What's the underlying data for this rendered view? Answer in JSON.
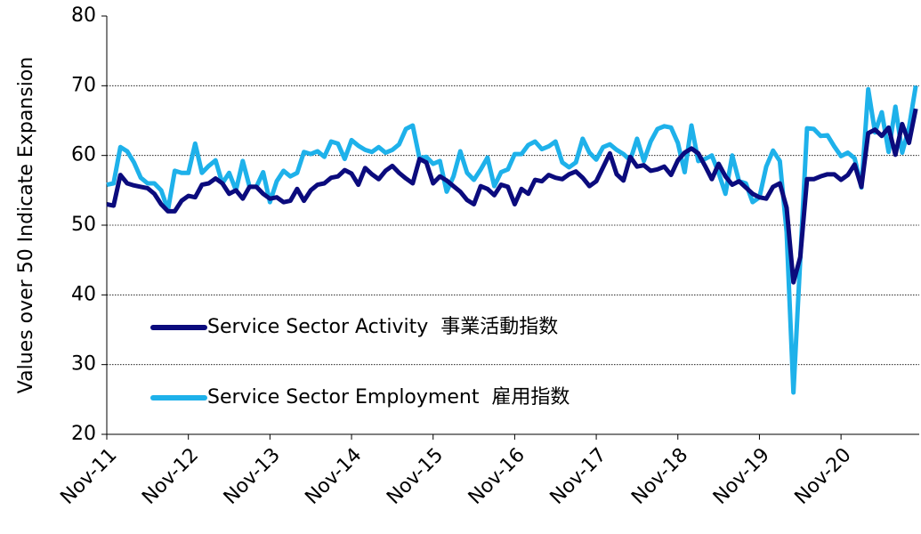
{
  "chart_data": {
    "type": "line",
    "ylabel": "Values over 50 Indicate Expansion",
    "categories": [
      "Nov-11",
      null,
      null,
      null,
      null,
      null,
      null,
      null,
      null,
      null,
      null,
      null,
      "Nov-12",
      null,
      null,
      null,
      null,
      null,
      null,
      null,
      null,
      null,
      null,
      null,
      "Nov-13",
      null,
      null,
      null,
      null,
      null,
      null,
      null,
      null,
      null,
      null,
      null,
      "Nov-14",
      null,
      null,
      null,
      null,
      null,
      null,
      null,
      null,
      null,
      null,
      null,
      "Nov-15",
      null,
      null,
      null,
      null,
      null,
      null,
      null,
      null,
      null,
      null,
      null,
      "Nov-16",
      null,
      null,
      null,
      null,
      null,
      null,
      null,
      null,
      null,
      null,
      null,
      "Nov-17",
      null,
      null,
      null,
      null,
      null,
      null,
      null,
      null,
      null,
      null,
      null,
      "Nov-18",
      null,
      null,
      null,
      null,
      null,
      null,
      null,
      null,
      null,
      null,
      null,
      "Nov-19",
      null,
      null,
      null,
      null,
      null,
      null,
      null,
      null,
      null,
      null,
      null,
      "Nov-20",
      null,
      null,
      null,
      null,
      null,
      null,
      null,
      null,
      null,
      null,
      null
    ],
    "series": [
      {
        "name": "Service Sector Activity  事業活動指数",
        "color": "#0b0b7d",
        "values": [
          53,
          52.8,
          57.2,
          56,
          55.7,
          55.5,
          55.3,
          54.5,
          53,
          52,
          52,
          53.5,
          54.2,
          54,
          55.8,
          56,
          56.7,
          56,
          54.5,
          55,
          53.8,
          55.5,
          55.5,
          54.5,
          53.8,
          54,
          53.3,
          53.5,
          55.2,
          53.5,
          55,
          55.8,
          56,
          56.8,
          57,
          57.9,
          57.4,
          55.8,
          58.2,
          57.3,
          56.6,
          57.8,
          58.5,
          57.5,
          56.7,
          56,
          59.5,
          59,
          56,
          57,
          56.4,
          55.6,
          54.8,
          53.6,
          53,
          55.6,
          55.2,
          54.3,
          55.8,
          55.5,
          53,
          55.2,
          54.5,
          56.5,
          56.3,
          57.2,
          56.8,
          56.6,
          57.3,
          57.7,
          56.8,
          55.6,
          56.3,
          58.3,
          60.3,
          57.3,
          56.4,
          59.8,
          58.4,
          58.6,
          57.8,
          58,
          58.4,
          57.2,
          59.3,
          60.4,
          61,
          60.3,
          58.5,
          56.6,
          58.8,
          57,
          55.8,
          56.3,
          55.4,
          54.5,
          54,
          53.8,
          55.5,
          56,
          52.5,
          41.8,
          45.4,
          56.6,
          56.6,
          57,
          57.3,
          57.3,
          56.5,
          57.2,
          58.7,
          55.5,
          63.2,
          63.7,
          62.8,
          64,
          60.1,
          64.5,
          61.8,
          66.7
        ]
      },
      {
        "name": "Service Sector Employment  雇用指数",
        "color": "#1eb1ea",
        "values": [
          55.8,
          56,
          61.2,
          60.6,
          59,
          56.8,
          56,
          56,
          55,
          52.2,
          57.8,
          57.5,
          57.5,
          61.7,
          57.5,
          58.5,
          59.3,
          56,
          57.5,
          55,
          59.2,
          55.5,
          55.5,
          57.6,
          53.3,
          56.3,
          57.8,
          57,
          57.5,
          60.5,
          60.2,
          60.6,
          59.8,
          62,
          61.7,
          59.5,
          62.2,
          61.4,
          60.8,
          60.5,
          61.2,
          60.4,
          60.8,
          61.6,
          63.8,
          64.3,
          59.6,
          59.8,
          58.8,
          59.2,
          54.8,
          57,
          60.6,
          57.5,
          56.5,
          58,
          59.7,
          55.6,
          57.6,
          58,
          60.2,
          60.2,
          61.5,
          62,
          60.9,
          61.3,
          62,
          59,
          58.3,
          59,
          62.4,
          60.4,
          59.4,
          61.2,
          61.6,
          60.8,
          60.2,
          59.3,
          62.4,
          59.2,
          62,
          63.8,
          64.2,
          64,
          61.8,
          57.6,
          64.3,
          59.2,
          59.5,
          60,
          57.5,
          54.5,
          60,
          56.3,
          56,
          53.3,
          54,
          58.4,
          60.7,
          59.2,
          49,
          26,
          45,
          63.9,
          63.8,
          62.8,
          62.9,
          61.3,
          59.9,
          60.4,
          59.6,
          55.4,
          69.5,
          63.3,
          66.2,
          60.5,
          67,
          60.4,
          64,
          70
        ]
      }
    ],
    "ylim": [
      20,
      80
    ],
    "yticks": [
      20,
      30,
      40,
      50,
      60,
      70,
      80
    ],
    "grid": true
  }
}
